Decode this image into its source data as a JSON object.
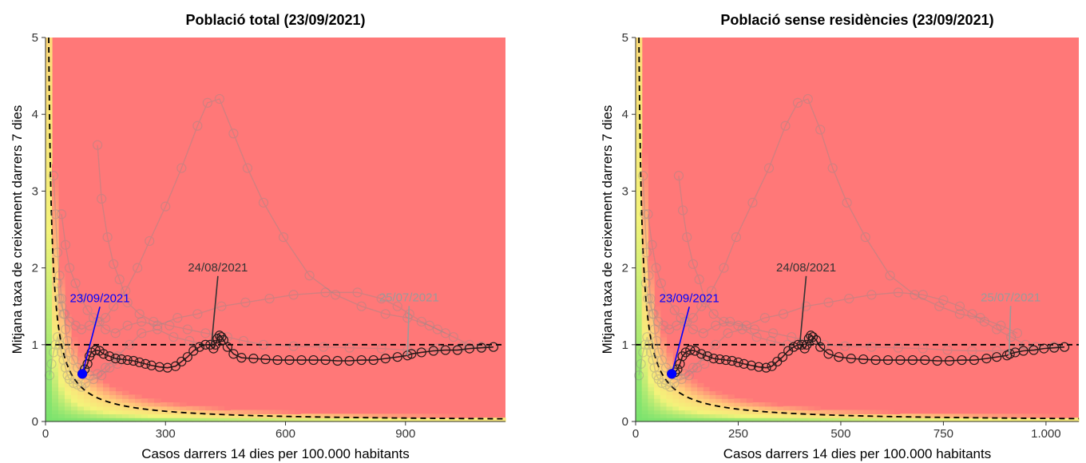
{
  "colors": {
    "high_risk": "#ff7878",
    "medium_risk": "#ffd27a",
    "low_risk": "#f4f37a",
    "very_low_risk": "#79e36e",
    "past_track": "#8c8c8c",
    "recent_track": "#111111",
    "current_point": "#0000ff"
  },
  "chart_data": [
    {
      "type": "scatter",
      "title": "Població total (23/09/2021)",
      "xlabel": "Casos darrers 14 dies per 100.000 habitants",
      "ylabel": "Mitjana taxa de creixement darrers 7 dies",
      "xlim": [
        0,
        1150
      ],
      "ylim": [
        0,
        5
      ],
      "x_ticks": [
        0,
        300,
        600,
        900
      ],
      "x_tick_labels": [
        "0",
        "300",
        "600",
        "900"
      ],
      "y_ticks": [
        0,
        1,
        2,
        3,
        4,
        5
      ],
      "y_tick_labels": [
        "0",
        "1",
        "2",
        "3",
        "4",
        "5"
      ],
      "reference_lines": [
        "y = 1",
        "x · y = 40"
      ],
      "annotations": [
        {
          "text": "23/09/2021",
          "x": 92,
          "y": 0.62,
          "color": "#0000ff"
        },
        {
          "text": "24/08/2021",
          "x": 415,
          "y": 1.0,
          "color": "#333333"
        },
        {
          "text": "25/07/2021",
          "x": 905,
          "y": 0.86,
          "color": "#9a9a9a"
        }
      ],
      "series": [
        {
          "style": "past",
          "x": [
            130,
            140,
            155,
            170,
            185,
            205,
            235,
            270,
            310,
            355,
            400,
            455,
            495,
            545,
            620,
            695,
            760,
            840,
            905,
            980,
            1040,
            1090,
            1120
          ],
          "y": [
            3.6,
            2.9,
            2.4,
            2.05,
            1.85,
            1.55,
            1.4,
            1.3,
            1.25,
            1.2,
            1.15,
            1.1,
            1.05,
            1.0,
            0.98,
            0.97,
            0.96,
            0.95,
            0.93,
            0.95,
            0.97,
            0.98,
            0.97
          ]
        },
        {
          "style": "past",
          "x": [
            40,
            50,
            60,
            75,
            90,
            105,
            120,
            135,
            150,
            170,
            200,
            230,
            260,
            300,
            340,
            380,
            405,
            435,
            470,
            505,
            545,
            595,
            660,
            725,
            790,
            850,
            905,
            960,
            1000
          ],
          "y": [
            2.7,
            2.3,
            2.0,
            1.8,
            1.6,
            1.45,
            1.35,
            1.3,
            1.35,
            1.5,
            1.7,
            2.0,
            2.35,
            2.8,
            3.3,
            3.85,
            4.15,
            4.2,
            3.75,
            3.3,
            2.85,
            2.4,
            1.9,
            1.65,
            1.5,
            1.4,
            1.35,
            1.25,
            1.15
          ]
        },
        {
          "style": "past",
          "x": [
            30,
            35,
            40,
            48,
            60,
            75,
            90,
            110,
            130,
            150,
            175,
            205,
            240,
            280,
            330,
            380,
            440,
            500,
            560,
            620,
            700,
            780,
            840,
            880,
            910,
            940,
            980,
            1020,
            1060
          ],
          "y": [
            1.8,
            1.6,
            1.5,
            1.4,
            1.3,
            1.25,
            1.2,
            1.25,
            1.3,
            1.2,
            1.15,
            1.25,
            1.3,
            1.25,
            1.35,
            1.4,
            1.5,
            1.55,
            1.6,
            1.65,
            1.68,
            1.68,
            1.6,
            1.5,
            1.4,
            1.3,
            1.2,
            1.1,
            1.0
          ]
        },
        {
          "style": "past",
          "x": [
            20,
            25,
            30,
            35,
            40,
            45,
            50,
            55,
            60,
            70,
            80,
            95,
            110,
            130,
            150,
            180,
            210,
            240,
            280,
            320,
            360,
            400
          ],
          "y": [
            3.2,
            2.7,
            2.2,
            1.9,
            1.6,
            1.4,
            1.2,
            1.05,
            0.9,
            0.8,
            0.7,
            0.65,
            0.6,
            0.62,
            0.7,
            0.85,
            1.0,
            1.15,
            1.2,
            1.1,
            1.05,
            1.0
          ]
        },
        {
          "style": "past",
          "x": [
            10,
            15,
            20,
            25,
            30,
            35,
            40,
            45,
            50,
            55,
            60,
            70,
            80,
            90,
            100,
            120,
            140,
            160,
            180
          ],
          "y": [
            0.6,
            0.75,
            0.9,
            1.0,
            1.1,
            1.0,
            0.9,
            0.8,
            0.7,
            0.6,
            0.55,
            0.5,
            0.48,
            0.45,
            0.5,
            0.55,
            0.6,
            0.7,
            0.75
          ]
        },
        {
          "style": "recent",
          "x": [
            1120,
            1090,
            1060,
            1030,
            1000,
            970,
            940,
            915,
            905,
            880,
            850,
            820,
            790,
            760,
            730,
            700,
            670,
            640,
            610,
            580,
            550,
            520,
            490,
            470,
            455,
            445,
            440,
            435,
            430,
            425,
            420,
            412,
            400,
            385,
            370,
            355,
            340,
            325,
            305,
            285,
            265,
            250,
            235,
            220,
            205,
            190,
            175,
            160,
            145,
            135,
            125,
            115,
            110,
            105,
            98,
            92
          ],
          "y": [
            0.97,
            0.96,
            0.95,
            0.93,
            0.93,
            0.92,
            0.9,
            0.88,
            0.86,
            0.84,
            0.82,
            0.8,
            0.8,
            0.79,
            0.79,
            0.8,
            0.8,
            0.8,
            0.8,
            0.8,
            0.81,
            0.82,
            0.83,
            0.88,
            0.97,
            1.06,
            1.1,
            1.12,
            1.08,
            1.0,
            0.95,
            1.0,
            1.0,
            0.97,
            0.92,
            0.84,
            0.78,
            0.72,
            0.7,
            0.71,
            0.73,
            0.75,
            0.77,
            0.79,
            0.8,
            0.81,
            0.82,
            0.85,
            0.88,
            0.92,
            0.93,
            0.9,
            0.85,
            0.75,
            0.68,
            0.62
          ]
        }
      ]
    },
    {
      "type": "scatter",
      "title": "Població sense residències (23/09/2021)",
      "xlabel": "Casos darrers 14 dies per 100.000 habitants",
      "ylabel": "Mitjana taxa de creixement darrers 7 dies",
      "xlim": [
        0,
        1080
      ],
      "ylim": [
        0,
        5
      ],
      "x_ticks": [
        0,
        250,
        500,
        750,
        1000
      ],
      "x_tick_labels": [
        "0",
        "250",
        "500",
        "750",
        "1.000"
      ],
      "y_ticks": [
        0,
        1,
        2,
        3,
        4,
        5
      ],
      "y_tick_labels": [
        "0",
        "1",
        "2",
        "3",
        "4",
        "5"
      ],
      "reference_lines": [
        "y = 1",
        "x · y = 40"
      ],
      "annotations": [
        {
          "text": "23/09/2021",
          "x": 88,
          "y": 0.62,
          "color": "#0000ff"
        },
        {
          "text": "24/08/2021",
          "x": 400,
          "y": 1.0,
          "color": "#333333"
        },
        {
          "text": "25/07/2021",
          "x": 910,
          "y": 0.86,
          "color": "#9a9a9a"
        }
      ],
      "series": [
        {
          "style": "past",
          "x": [
            105,
            115,
            125,
            140,
            155,
            170,
            190,
            215,
            250,
            290,
            335,
            380,
            420,
            460,
            510,
            575,
            640,
            700,
            760,
            820,
            880,
            930,
            975,
            1020,
            1045
          ],
          "y": [
            3.2,
            2.75,
            2.4,
            2.05,
            1.85,
            1.55,
            1.4,
            1.3,
            1.25,
            1.2,
            1.15,
            1.1,
            1.05,
            1.0,
            0.98,
            0.97,
            0.96,
            0.95,
            0.93,
            0.92,
            0.92,
            0.94,
            0.97,
            0.98,
            0.97
          ]
        },
        {
          "style": "past",
          "x": [
            30,
            40,
            50,
            62,
            78,
            95,
            110,
            125,
            140,
            160,
            185,
            215,
            245,
            285,
            325,
            365,
            395,
            420,
            450,
            480,
            515,
            560,
            620,
            680,
            740,
            790,
            840,
            890,
            930
          ],
          "y": [
            2.7,
            2.3,
            2.0,
            1.8,
            1.6,
            1.45,
            1.35,
            1.3,
            1.35,
            1.5,
            1.7,
            2.0,
            2.4,
            2.85,
            3.3,
            3.85,
            4.15,
            4.2,
            3.8,
            3.3,
            2.85,
            2.4,
            1.9,
            1.65,
            1.5,
            1.4,
            1.35,
            1.25,
            1.15
          ]
        },
        {
          "style": "past",
          "x": [
            25,
            30,
            36,
            44,
            55,
            68,
            82,
            100,
            120,
            140,
            165,
            195,
            230,
            270,
            315,
            360,
            415,
            470,
            520,
            575,
            640,
            700,
            750,
            790,
            820,
            850,
            880,
            915,
            950
          ],
          "y": [
            1.8,
            1.6,
            1.5,
            1.4,
            1.3,
            1.25,
            1.2,
            1.25,
            1.3,
            1.2,
            1.15,
            1.25,
            1.3,
            1.25,
            1.35,
            1.4,
            1.5,
            1.55,
            1.6,
            1.65,
            1.68,
            1.65,
            1.58,
            1.5,
            1.4,
            1.3,
            1.2,
            1.1,
            1.0
          ]
        },
        {
          "style": "past",
          "x": [
            18,
            22,
            27,
            32,
            36,
            41,
            46,
            51,
            56,
            64,
            74,
            88,
            102,
            120,
            140,
            168,
            195,
            225,
            260,
            295,
            330,
            370
          ],
          "y": [
            3.2,
            2.7,
            2.2,
            1.9,
            1.6,
            1.4,
            1.2,
            1.05,
            0.9,
            0.8,
            0.7,
            0.65,
            0.6,
            0.62,
            0.7,
            0.85,
            1.0,
            1.15,
            1.2,
            1.1,
            1.05,
            1.0
          ]
        },
        {
          "style": "past",
          "x": [
            8,
            13,
            18,
            23,
            28,
            32,
            37,
            42,
            46,
            51,
            56,
            64,
            74,
            84,
            94,
            112,
            130,
            150,
            168
          ],
          "y": [
            0.6,
            0.75,
            0.9,
            1.0,
            1.1,
            1.0,
            0.9,
            0.8,
            0.7,
            0.6,
            0.55,
            0.5,
            0.48,
            0.45,
            0.5,
            0.55,
            0.6,
            0.7,
            0.75
          ]
        },
        {
          "style": "recent",
          "x": [
            1045,
            1020,
            995,
            970,
            945,
            925,
            912,
            905,
            880,
            855,
            825,
            795,
            765,
            735,
            705,
            675,
            645,
            615,
            585,
            555,
            525,
            495,
            470,
            450,
            440,
            432,
            427,
            422,
            417,
            412,
            405,
            396,
            385,
            372,
            358,
            345,
            332,
            318,
            300,
            282,
            264,
            250,
            235,
            220,
            205,
            190,
            175,
            160,
            145,
            133,
            122,
            114,
            108,
            102,
            96,
            88
          ],
          "y": [
            0.97,
            0.96,
            0.95,
            0.93,
            0.92,
            0.9,
            0.88,
            0.86,
            0.84,
            0.82,
            0.8,
            0.8,
            0.79,
            0.79,
            0.8,
            0.8,
            0.8,
            0.8,
            0.8,
            0.81,
            0.82,
            0.84,
            0.88,
            0.97,
            1.06,
            1.1,
            1.12,
            1.08,
            1.0,
            0.95,
            1.0,
            1.0,
            0.97,
            0.92,
            0.84,
            0.78,
            0.72,
            0.7,
            0.71,
            0.73,
            0.75,
            0.77,
            0.79,
            0.8,
            0.81,
            0.82,
            0.85,
            0.88,
            0.92,
            0.93,
            0.9,
            0.85,
            0.75,
            0.68,
            0.64,
            0.62
          ]
        }
      ]
    }
  ]
}
